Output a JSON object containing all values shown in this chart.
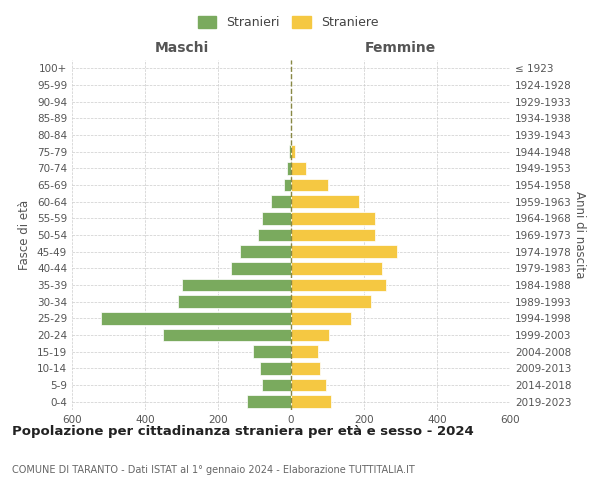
{
  "age_groups": [
    "0-4",
    "5-9",
    "10-14",
    "15-19",
    "20-24",
    "25-29",
    "30-34",
    "35-39",
    "40-44",
    "45-49",
    "50-54",
    "55-59",
    "60-64",
    "65-69",
    "70-74",
    "75-79",
    "80-84",
    "85-89",
    "90-94",
    "95-99",
    "100+"
  ],
  "birth_years": [
    "2019-2023",
    "2014-2018",
    "2009-2013",
    "2004-2008",
    "1999-2003",
    "1994-1998",
    "1989-1993",
    "1984-1988",
    "1979-1983",
    "1974-1978",
    "1969-1973",
    "1964-1968",
    "1959-1963",
    "1954-1958",
    "1949-1953",
    "1944-1948",
    "1939-1943",
    "1934-1938",
    "1929-1933",
    "1924-1928",
    "≤ 1923"
  ],
  "males": [
    120,
    80,
    85,
    105,
    350,
    520,
    310,
    300,
    165,
    140,
    90,
    80,
    55,
    20,
    12,
    5,
    0,
    0,
    0,
    0,
    0
  ],
  "females": [
    110,
    95,
    80,
    75,
    105,
    165,
    220,
    260,
    250,
    290,
    230,
    230,
    185,
    100,
    40,
    10,
    0,
    0,
    0,
    0,
    0
  ],
  "male_color": "#7aaa5e",
  "female_color": "#f5c842",
  "background_color": "#ffffff",
  "grid_color": "#cccccc",
  "title": "Popolazione per cittadinanza straniera per età e sesso - 2024",
  "subtitle": "COMUNE DI TARANTO - Dati ISTAT al 1° gennaio 2024 - Elaborazione TUTTITALIA.IT",
  "xlabel_left": "Maschi",
  "xlabel_right": "Femmine",
  "ylabel_left": "Fasce di età",
  "ylabel_right": "Anni di nascita",
  "legend_male": "Stranieri",
  "legend_female": "Straniere",
  "xlim": 600
}
